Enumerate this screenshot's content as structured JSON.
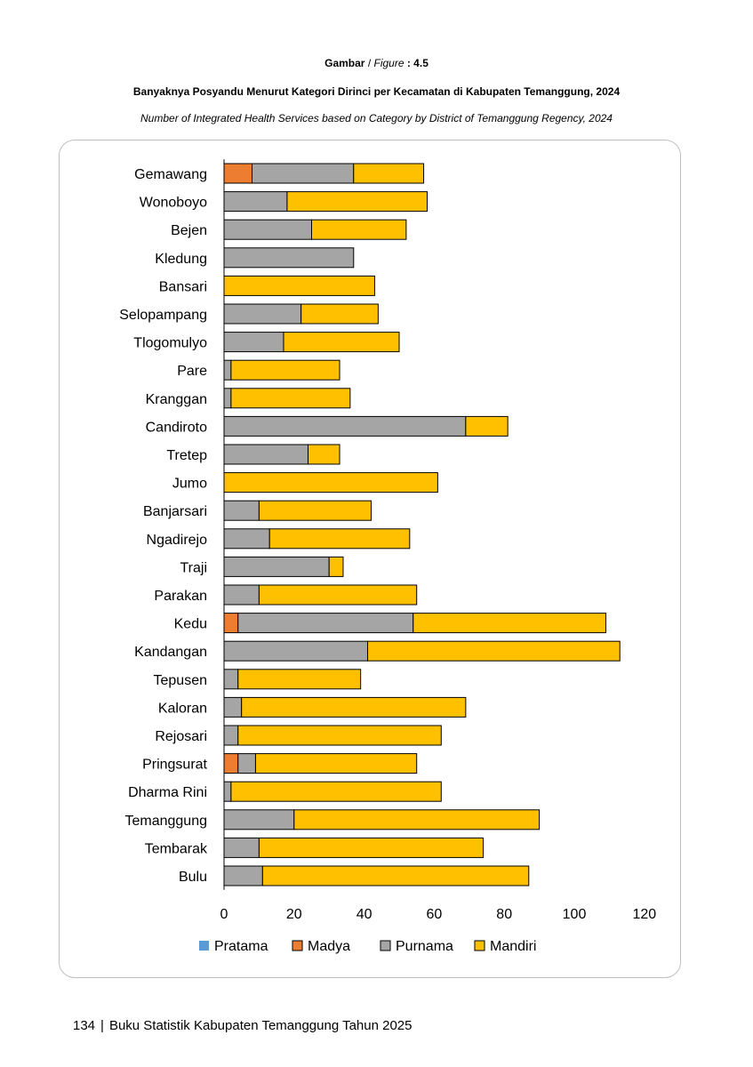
{
  "header": {
    "figure_prefix": "Gambar",
    "figure_slash": " / ",
    "figure_word": "Figure",
    "figure_number": " : 4.5",
    "title_id": "Banyaknya Posyandu Menurut Kategori Dirinci per Kecamatan di Kabupaten Temanggung, 2024",
    "title_en": "Number of Integrated Health Services based on Category by District of Temanggung Regency, 2024"
  },
  "footer": {
    "page_number": "134",
    "separator": "|",
    "book_title": "Buku Statistik Kabupaten Temanggung Tahun 2025"
  },
  "chart_data": {
    "type": "bar",
    "orientation": "horizontal",
    "stacked": true,
    "categories": [
      "Gemawang",
      "Wonoboyo",
      "Bejen",
      "Kledung",
      "Bansari",
      "Selopampang",
      "Tlogomulyo",
      "Pare",
      "Kranggan",
      "Candiroto",
      "Tretep",
      "Jumo",
      "Banjarsari",
      "Ngadirejo",
      "Traji",
      "Parakan",
      "Kedu",
      "Kandangan",
      "Tepusen",
      "Kaloran",
      "Rejosari",
      "Pringsurat",
      "Dharma Rini",
      "Temanggung",
      "Tembarak",
      "Bulu"
    ],
    "series": [
      {
        "name": "Pratama",
        "color": "#5b9bd5",
        "values": [
          0,
          0,
          0,
          0,
          0,
          0,
          0,
          0,
          0,
          0,
          0,
          0,
          0,
          0,
          0,
          0,
          0,
          0,
          0,
          0,
          0,
          0,
          0,
          0,
          0,
          0
        ]
      },
      {
        "name": "Madya",
        "color": "#ed7d31",
        "values": [
          8,
          0,
          0,
          0,
          0,
          0,
          0,
          0,
          0,
          0,
          0,
          0,
          0,
          0,
          0,
          0,
          4,
          0,
          0,
          0,
          0,
          4,
          0,
          0,
          0,
          0
        ]
      },
      {
        "name": "Purnama",
        "color": "#a5a5a5",
        "values": [
          29,
          18,
          25,
          37,
          0,
          22,
          17,
          2,
          2,
          69,
          24,
          0,
          10,
          13,
          30,
          10,
          50,
          41,
          4,
          5,
          4,
          5,
          2,
          20,
          10,
          11
        ]
      },
      {
        "name": "Mandiri",
        "color": "#ffc000",
        "values": [
          20,
          40,
          27,
          0,
          43,
          22,
          33,
          31,
          34,
          12,
          9,
          61,
          32,
          40,
          4,
          45,
          55,
          72,
          35,
          64,
          58,
          46,
          60,
          70,
          64,
          76
        ]
      }
    ],
    "x_ticks": [
      "0",
      "20",
      "40",
      "60",
      "80",
      "100",
      "120"
    ],
    "xlim": [
      0,
      120
    ],
    "grid": false,
    "legend_position": "bottom"
  }
}
